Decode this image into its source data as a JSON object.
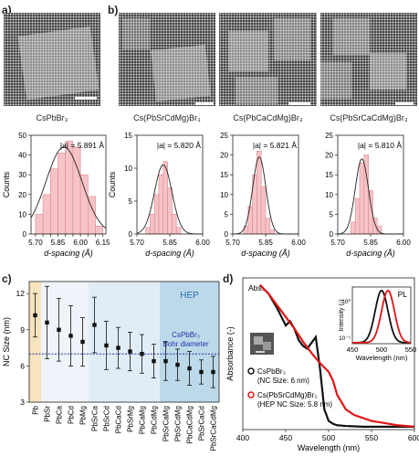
{
  "panel_labels": {
    "a": "a)",
    "b": "b)",
    "c": "c)",
    "d": "d)"
  },
  "tem_captions": [
    "CsPbBr₃",
    "Cs(PbSrCdMg)Br₃",
    "Cs(PbCaCdMg)Br₃",
    "Cs(PbSrCaCdMg)Br₃"
  ],
  "chart_data": [
    {
      "type": "bar",
      "panel": "a",
      "annotation": "|a| = 5.891 Å",
      "xlabel": "d-spacing (Å)",
      "ylabel": "Counts",
      "xlim": [
        5.67,
        6.17
      ],
      "ylim": [
        0,
        50
      ],
      "xticks": [
        "5.70",
        "5.75",
        "5.80",
        "5.85",
        "5.90",
        "5.95",
        "6.00",
        "6.05",
        "6.10",
        "6.15"
      ],
      "xtick_values": [
        5.7,
        5.75,
        5.8,
        5.85,
        5.9,
        5.95,
        6.0,
        6.05,
        6.1,
        6.15
      ],
      "yticks": [
        0,
        10,
        20,
        30,
        40,
        50
      ],
      "bin_edges": [
        5.7,
        5.75,
        5.8,
        5.85,
        5.9,
        5.95,
        6.0,
        6.05,
        6.1,
        6.15
      ],
      "values": [
        10,
        20,
        33,
        41,
        47,
        44,
        30,
        19,
        4
      ],
      "fit": {
        "mu": 5.89,
        "sigma": 0.12,
        "peak": 44
      }
    },
    {
      "type": "bar",
      "panel": "b1",
      "annotation": "|a| = 5.820 Å",
      "xlabel": "d-spacing (Å)",
      "ylabel": "Counts",
      "xlim": [
        5.7,
        6.0
      ],
      "ylim": [
        0,
        15
      ],
      "xticks": [
        "5.70",
        "5.85",
        "6.00"
      ],
      "xtick_values": [
        5.7,
        5.85,
        6.0
      ],
      "yticks": [
        0,
        5,
        10,
        15
      ],
      "bin_edges": [
        5.74,
        5.76,
        5.78,
        5.8,
        5.82,
        5.84,
        5.86,
        5.88,
        5.9
      ],
      "values": [
        1,
        3,
        6,
        9,
        11,
        7,
        3,
        1
      ],
      "fit": {
        "mu": 5.82,
        "sigma": 0.04,
        "peak": 10.5
      }
    },
    {
      "type": "bar",
      "panel": "b2",
      "annotation": "|a| = 5.821 Å",
      "xlabel": "d-spacing (Å)",
      "ylabel": "",
      "xlim": [
        5.7,
        6.0
      ],
      "ylim": [
        0,
        25
      ],
      "xticks": [
        "5.70",
        "5.85",
        "6.00"
      ],
      "xtick_values": [
        5.7,
        5.85,
        6.0
      ],
      "yticks": [
        0,
        5,
        10,
        15,
        20,
        25
      ],
      "bin_edges": [
        5.75,
        5.77,
        5.79,
        5.81,
        5.83,
        5.85,
        5.87,
        5.89
      ],
      "values": [
        2,
        7,
        15,
        21,
        12,
        4,
        1
      ],
      "fit": {
        "mu": 5.821,
        "sigma": 0.03,
        "peak": 19.5
      }
    },
    {
      "type": "bar",
      "panel": "b3",
      "annotation": "|a| = 5.810 Å",
      "xlabel": "d-spacing (Å)",
      "ylabel": "",
      "xlim": [
        5.7,
        6.0
      ],
      "ylim": [
        0,
        25
      ],
      "xticks": [
        "5.70",
        "5.85",
        "6.00"
      ],
      "xtick_values": [
        5.7,
        5.85,
        6.0
      ],
      "yticks": [
        0,
        5,
        10,
        15,
        20,
        25
      ],
      "bin_edges": [
        5.76,
        5.78,
        5.8,
        5.82,
        5.84,
        5.86,
        5.88,
        5.9
      ],
      "values": [
        3,
        9,
        18,
        20,
        11,
        4,
        2
      ],
      "fit": {
        "mu": 5.81,
        "sigma": 0.03,
        "peak": 19
      }
    },
    {
      "type": "scatter",
      "panel": "c",
      "ylabel": "NC Size (nm)",
      "ylim": [
        3,
        13
      ],
      "yticks": [
        3,
        6,
        9,
        12
      ],
      "categories": [
        "Pb",
        "PbSr",
        "PbCa",
        "PbCd",
        "PbMg",
        "PbSrCa",
        "PbSrCd",
        "PbCaCd",
        "PbSrMg",
        "PbCaMg",
        "PbCdMg",
        "PbSrCaMg",
        "PbSrCdMg",
        "PbCaCdMg",
        "PbSrCaCd",
        "PbSrCaCdMg"
      ],
      "values": [
        10.2,
        9.6,
        9.0,
        8.5,
        8.0,
        9.4,
        7.7,
        7.5,
        7.2,
        7.0,
        6.4,
        6.4,
        6.1,
        5.8,
        5.5,
        5.5
      ],
      "errors": [
        1.8,
        3.0,
        2.6,
        2.5,
        2.0,
        2.3,
        2.0,
        1.7,
        1.6,
        1.6,
        1.4,
        1.6,
        1.3,
        1.4,
        1.0,
        1.3
      ],
      "hline": 7.0,
      "annotations": [
        "HEP",
        "CsPbBr₃",
        "Bohr diameter"
      ],
      "colors": {
        "pb_region": "#f7e3bd",
        "light_region": "#eef4f9",
        "mid_region": "#e1edf6",
        "hep_region": "#bcd9ea",
        "hline": "#2330a8",
        "hep_text": "#2a6fb0",
        "bohr_text": "#2330a8"
      }
    },
    {
      "type": "line",
      "panel": "d",
      "xlabel": "Wavelength (nm)",
      "ylabel": "Absorbance (-)",
      "xlim": [
        400,
        600
      ],
      "xticks": [
        400,
        450,
        500,
        550,
        600
      ],
      "annotation": "Abs.",
      "series": [
        {
          "name": "CsPbBr₃",
          "sublabel": "(NC Size: 6 nm)",
          "color": "#111111",
          "x": [
            420,
            430,
            440,
            445,
            450,
            455,
            460,
            465,
            470,
            475,
            480,
            485,
            490,
            495,
            500,
            505,
            510,
            520,
            540,
            560,
            580,
            600
          ],
          "y": [
            1.0,
            0.94,
            0.84,
            0.78,
            0.72,
            0.75,
            0.7,
            0.62,
            0.58,
            0.56,
            0.6,
            0.64,
            0.42,
            0.14,
            0.06,
            0.04,
            0.03,
            0.025,
            0.02,
            0.02,
            0.02,
            0.02
          ]
        },
        {
          "name": "Cs(PbSrCdMg)Br₃",
          "sublabel": "(HEP NC Size: 5.8 nm)",
          "color": "#e01515",
          "x": [
            420,
            430,
            440,
            450,
            460,
            470,
            480,
            490,
            500,
            505,
            510,
            520,
            530,
            540,
            550,
            560,
            570,
            580,
            600
          ],
          "y": [
            1.0,
            0.94,
            0.86,
            0.78,
            0.7,
            0.61,
            0.53,
            0.46,
            0.4,
            0.34,
            0.24,
            0.14,
            0.1,
            0.08,
            0.06,
            0.05,
            0.04,
            0.03,
            0.02
          ]
        }
      ],
      "inset": {
        "annotation": "PL",
        "xlabel": "Wavelength (nm)",
        "ylabel": "Intensity (-)",
        "xlim": [
          450,
          550
        ],
        "xticks": [
          450,
          500,
          550
        ],
        "yticks": [
          "10⁻¹",
          "10⁰"
        ],
        "series": [
          {
            "name": "CsPbBr₃",
            "color": "#111111",
            "mu": 500,
            "sigma": 11
          },
          {
            "name": "Cs(PbSrCdMg)Br₃",
            "color": "#e01515",
            "mu": 511,
            "sigma": 11
          }
        ]
      }
    }
  ]
}
